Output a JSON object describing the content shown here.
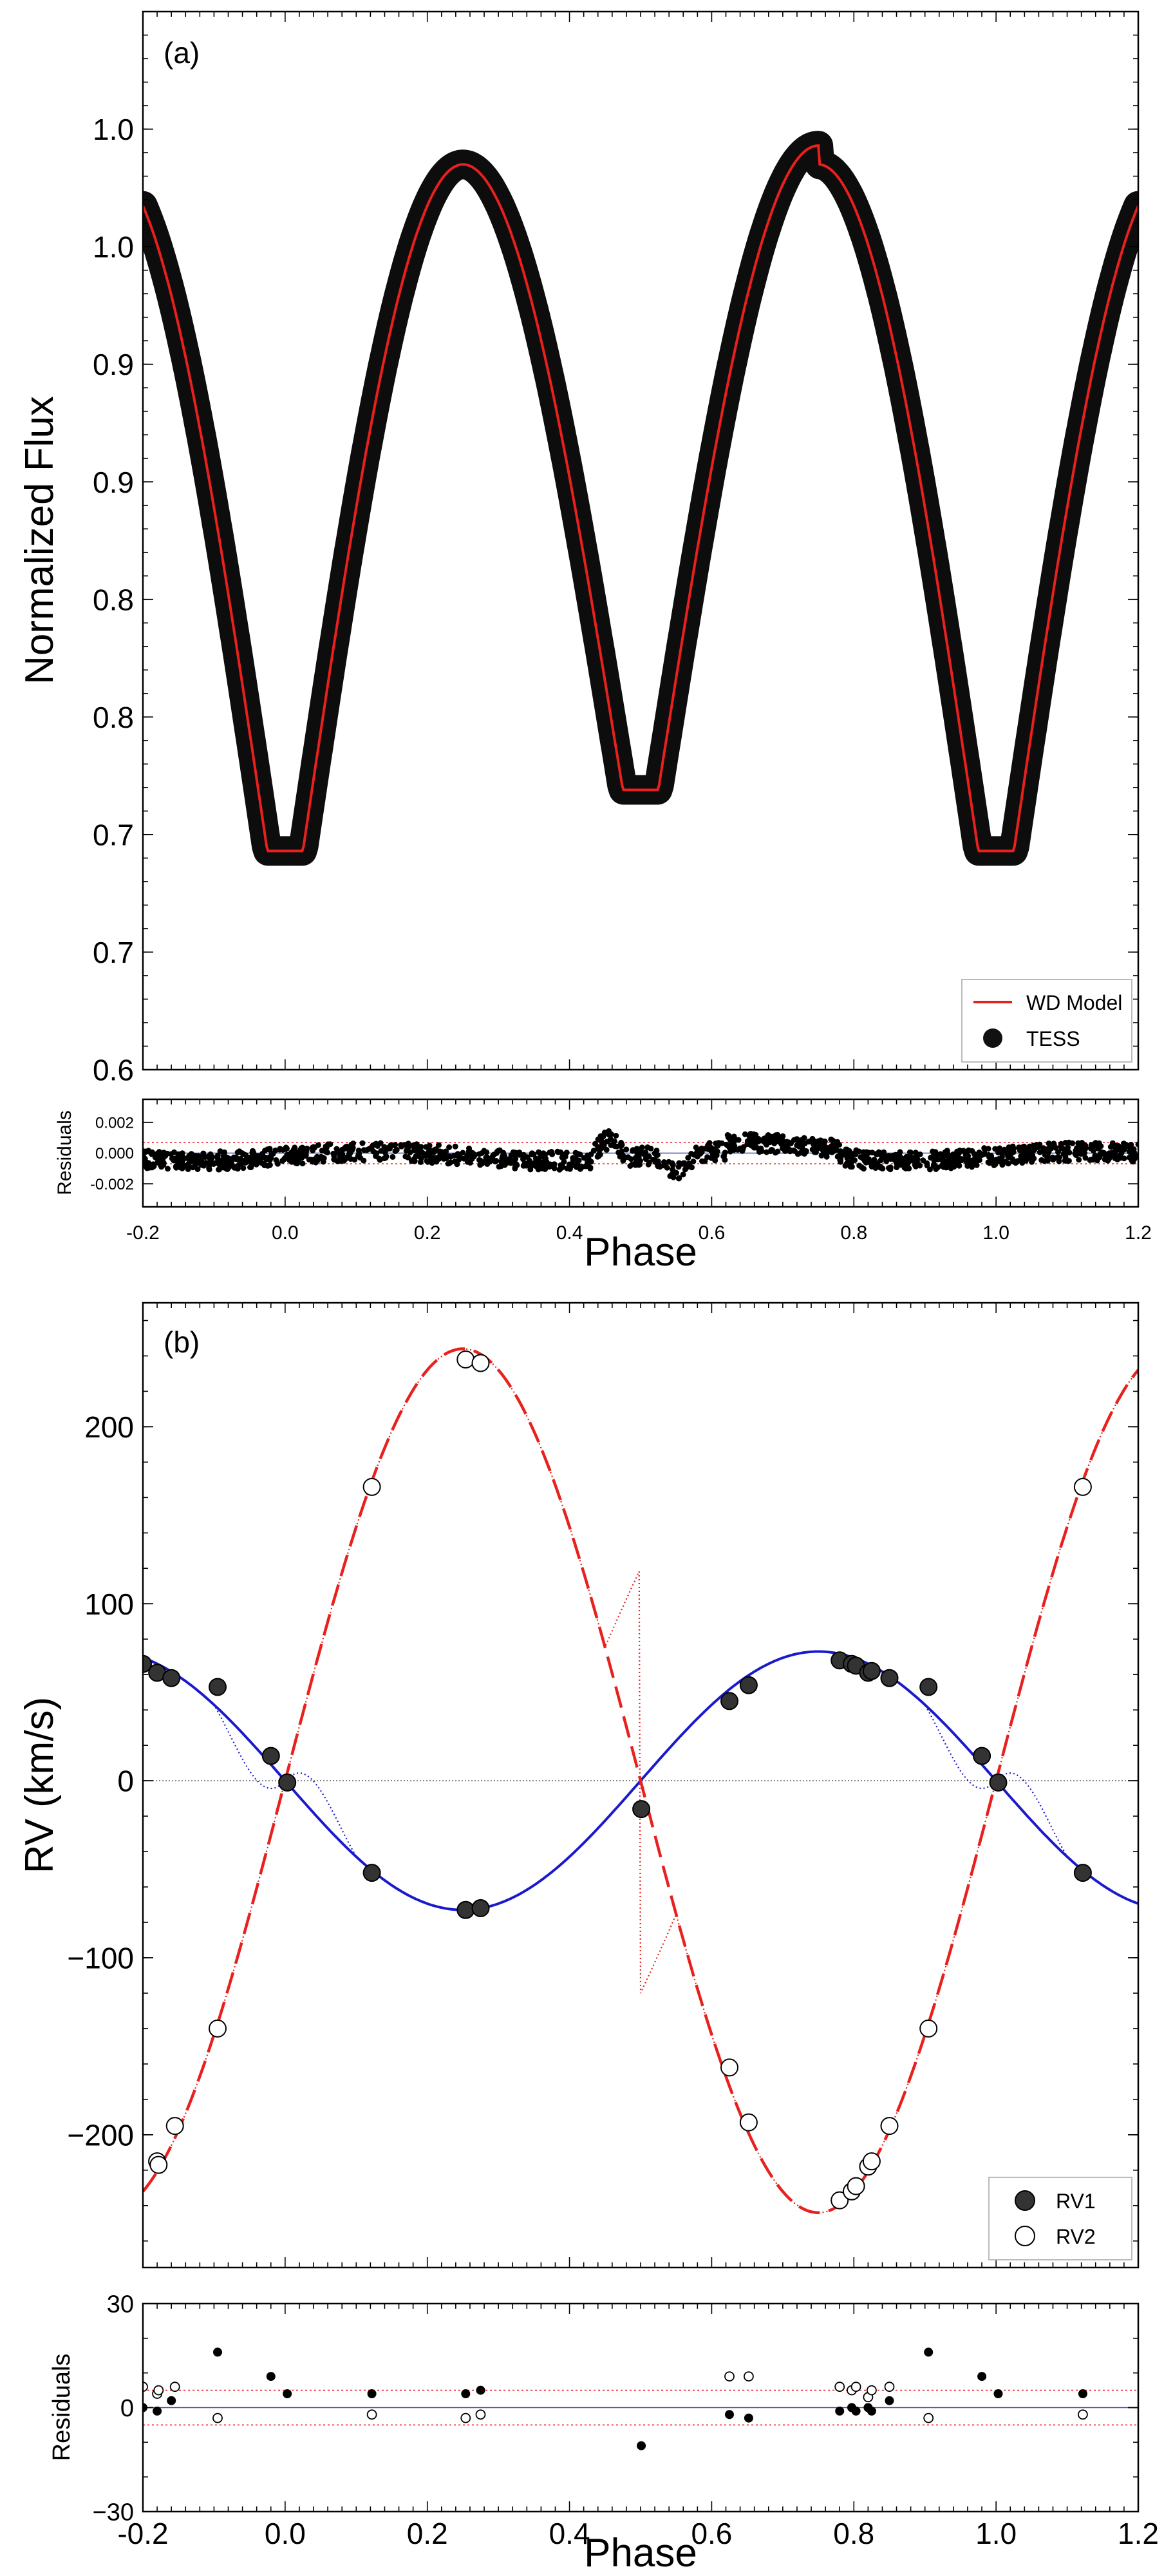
{
  "chart_data": [
    {
      "id": "lc",
      "type": "scatter",
      "panel_label": "(a)",
      "ylabel": "Normalized Flux",
      "xlim": [
        -0.2,
        1.2
      ],
      "ylim": [
        0.6,
        1.05
      ],
      "y_ticks": [
        {
          "value": 0.6,
          "label": "0.6"
        },
        {
          "value": 0.65,
          "label": "0.7"
        },
        {
          "value": 0.7,
          "label": "0.7"
        },
        {
          "value": 0.75,
          "label": "0.8"
        },
        {
          "value": 0.8,
          "label": "0.8"
        },
        {
          "value": 0.85,
          "label": "0.9"
        },
        {
          "value": 0.9,
          "label": "0.9"
        },
        {
          "value": 0.95,
          "label": "1.0"
        },
        {
          "value": 1.0,
          "label": "1.0"
        }
      ],
      "model": {
        "max1": 0.985,
        "max2": 0.993,
        "min_primary": 0.693,
        "min_secondary": 0.719,
        "flat_half_width": 0.025
      },
      "legend": [
        {
          "label": "WD Model",
          "color": "#e8201e",
          "marker": "line"
        },
        {
          "label": "TESS",
          "color": "#111111",
          "marker": "filled-circle"
        }
      ]
    },
    {
      "id": "lc_res",
      "type": "scatter",
      "ylabel": "Residuals",
      "xlabel": "Phase",
      "xlim": [
        -0.2,
        1.2
      ],
      "ylim": [
        -0.0035,
        0.0035
      ],
      "x_ticks": [
        "-0.2",
        "0.0",
        "0.2",
        "0.4",
        "0.6",
        "0.8",
        "1.0",
        "1.2"
      ],
      "y_ticks": [
        {
          "value": 0.002,
          "label": "0.002"
        },
        {
          "value": 0.0,
          "label": "0.000"
        },
        {
          "value": -0.002,
          "label": "-0.002"
        }
      ],
      "reference_lines": [
        0.0007,
        -0.0007
      ]
    },
    {
      "id": "rv",
      "type": "scatter",
      "panel_label": "(b)",
      "ylabel": "RV (km/s)",
      "xlim": [
        -0.2,
        1.2
      ],
      "ylim": [
        -275,
        270
      ],
      "y_ticks": [
        {
          "value": 200,
          "label": "200"
        },
        {
          "value": 100,
          "label": "100"
        },
        {
          "value": 0,
          "label": "0"
        },
        {
          "value": -100,
          "label": "−100"
        },
        {
          "value": -200,
          "label": "−200"
        }
      ],
      "K1": 73,
      "K2": 244,
      "legend": [
        {
          "label": "RV1",
          "color": "#333333",
          "marker": "filled-circle"
        },
        {
          "label": "RV2",
          "color": "#ffffff",
          "marker": "open-circle"
        }
      ],
      "series": [
        {
          "name": "RV1",
          "points": [
            [
              -0.2,
              66
            ],
            [
              -0.18,
              61
            ],
            [
              -0.16,
              58
            ],
            [
              -0.095,
              53
            ],
            [
              -0.02,
              14
            ],
            [
              0.003,
              -1
            ],
            [
              0.122,
              -52
            ],
            [
              0.254,
              -73
            ],
            [
              0.275,
              -72
            ],
            [
              0.501,
              -16
            ],
            [
              0.625,
              45
            ],
            [
              0.652,
              54
            ],
            [
              0.78,
              68
            ],
            [
              0.797,
              66
            ],
            [
              0.803,
              65
            ],
            [
              0.82,
              61
            ],
            [
              0.825,
              62
            ],
            [
              0.85,
              58
            ],
            [
              0.905,
              53
            ],
            [
              0.98,
              14
            ],
            [
              1.003,
              -1
            ],
            [
              1.122,
              -52
            ]
          ]
        },
        {
          "name": "RV2",
          "points": [
            [
              -0.18,
              -215
            ],
            [
              -0.178,
              -217
            ],
            [
              -0.155,
              -195
            ],
            [
              -0.095,
              -140
            ],
            [
              0.122,
              166
            ],
            [
              0.254,
              238
            ],
            [
              0.275,
              236
            ],
            [
              0.625,
              -162
            ],
            [
              0.652,
              -193
            ],
            [
              0.78,
              -237
            ],
            [
              0.797,
              -232
            ],
            [
              0.803,
              -229
            ],
            [
              0.82,
              -218
            ],
            [
              0.825,
              -215
            ],
            [
              0.85,
              -195
            ],
            [
              0.905,
              -140
            ],
            [
              1.122,
              166
            ]
          ]
        }
      ]
    },
    {
      "id": "rv_res",
      "type": "scatter",
      "ylabel": "Residuals",
      "xlabel": "Phase",
      "xlim": [
        -0.2,
        1.2
      ],
      "ylim": [
        -30,
        30
      ],
      "x_ticks": [
        "-0.2",
        "0.0",
        "0.2",
        "0.4",
        "0.6",
        "0.8",
        "1.0",
        "1.2"
      ],
      "y_ticks": [
        {
          "value": 30,
          "label": "30"
        },
        {
          "value": 0,
          "label": "0"
        },
        {
          "value": -30,
          "label": "−30"
        }
      ],
      "reference_lines": [
        5,
        -5
      ],
      "series": [
        {
          "name": "RV1",
          "points": [
            [
              -0.2,
              0
            ],
            [
              -0.18,
              -1
            ],
            [
              -0.16,
              2
            ],
            [
              -0.095,
              16
            ],
            [
              -0.02,
              9
            ],
            [
              0.003,
              4
            ],
            [
              0.122,
              4
            ],
            [
              0.254,
              4
            ],
            [
              0.275,
              5
            ],
            [
              0.501,
              -11
            ],
            [
              0.625,
              -2
            ],
            [
              0.652,
              -3
            ],
            [
              0.78,
              -1
            ],
            [
              0.797,
              0
            ],
            [
              0.803,
              -1
            ],
            [
              0.82,
              0
            ],
            [
              0.825,
              -1
            ],
            [
              0.85,
              2
            ],
            [
              0.905,
              16
            ],
            [
              0.98,
              9
            ],
            [
              1.003,
              4
            ],
            [
              1.122,
              4
            ]
          ]
        },
        {
          "name": "RV2",
          "points": [
            [
              -0.2,
              6
            ],
            [
              -0.18,
              4
            ],
            [
              -0.178,
              5
            ],
            [
              -0.155,
              6
            ],
            [
              -0.095,
              -3
            ],
            [
              0.122,
              -2
            ],
            [
              0.254,
              -3
            ],
            [
              0.275,
              -2
            ],
            [
              0.625,
              9
            ],
            [
              0.652,
              9
            ],
            [
              0.78,
              6
            ],
            [
              0.797,
              5
            ],
            [
              0.803,
              6
            ],
            [
              0.82,
              3
            ],
            [
              0.825,
              5
            ],
            [
              0.85,
              6
            ],
            [
              0.905,
              -3
            ],
            [
              1.122,
              -2
            ]
          ]
        }
      ]
    }
  ]
}
